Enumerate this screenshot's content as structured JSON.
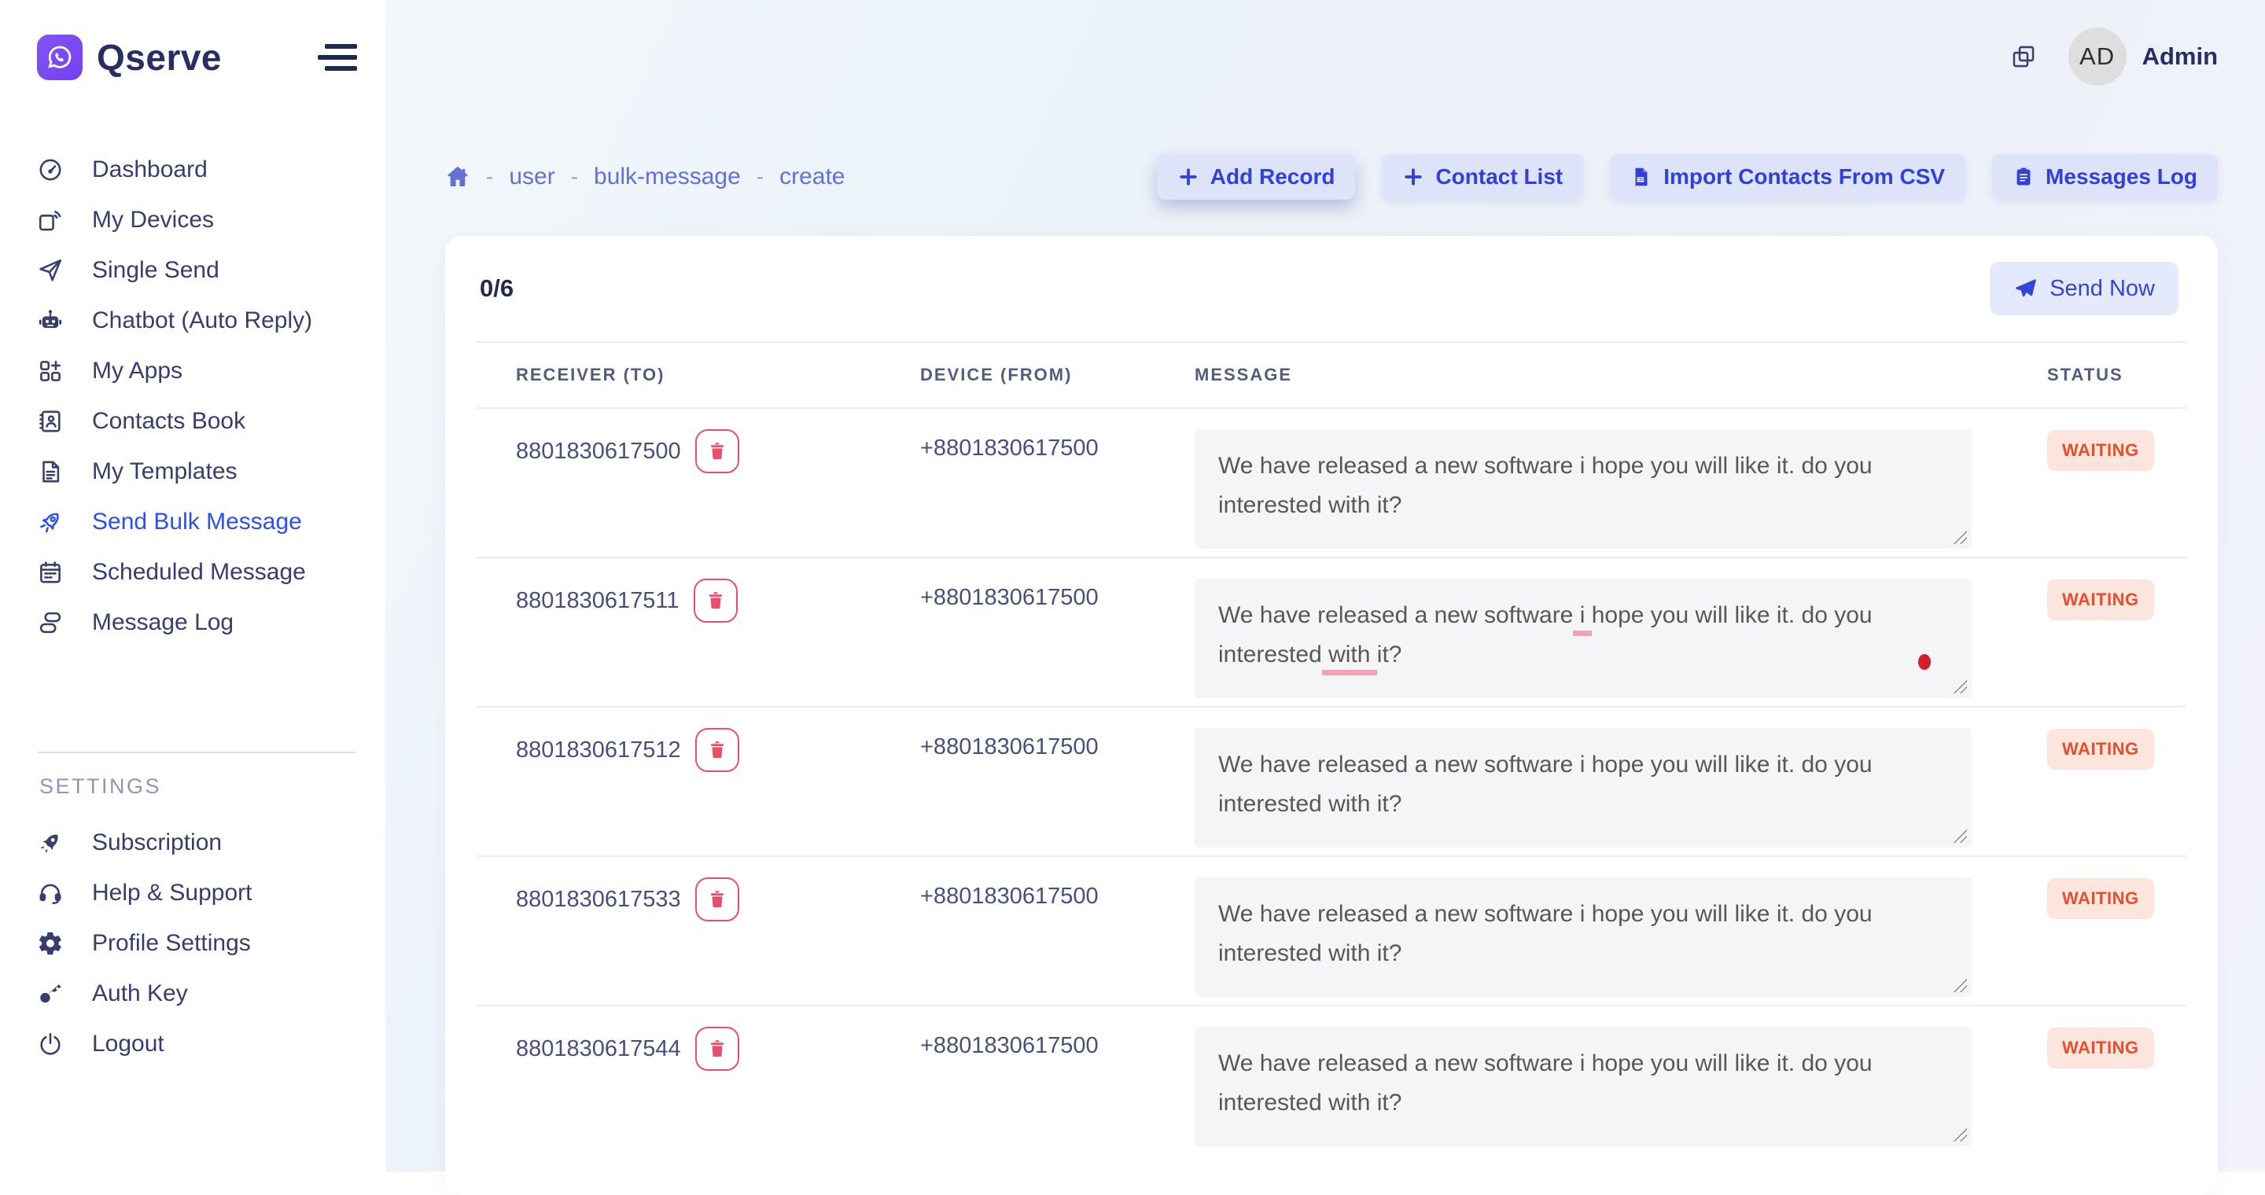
{
  "brand": {
    "name": "Qserve",
    "logo_icon": "whatsapp-icon"
  },
  "topbar": {
    "copy_icon": "copy-icon",
    "user_initials": "AD",
    "user_name": "Admin"
  },
  "sidebar": {
    "items": [
      {
        "label": "Dashboard",
        "icon": "dashboard-icon",
        "active": false
      },
      {
        "label": "My Devices",
        "icon": "devices-icon",
        "active": false
      },
      {
        "label": "Single Send",
        "icon": "paper-plane-icon",
        "active": false
      },
      {
        "label": "Chatbot (Auto Reply)",
        "icon": "robot-icon",
        "active": false
      },
      {
        "label": "My Apps",
        "icon": "apps-grid-icon",
        "active": false
      },
      {
        "label": "Contacts Book",
        "icon": "contacts-icon",
        "active": false
      },
      {
        "label": "My Templates",
        "icon": "template-icon",
        "active": false
      },
      {
        "label": "Send Bulk Message",
        "icon": "rocket-icon",
        "active": true
      },
      {
        "label": "Scheduled Message",
        "icon": "calendar-icon",
        "active": false
      },
      {
        "label": "Message Log",
        "icon": "log-icon",
        "active": false
      }
    ],
    "section_label": "SETTINGS",
    "settings_items": [
      {
        "label": "Subscription",
        "icon": "rocket-filled-icon",
        "active": false
      },
      {
        "label": "Help & Support",
        "icon": "headset-icon",
        "active": false
      },
      {
        "label": "Profile Settings",
        "icon": "gear-icon",
        "active": false
      },
      {
        "label": "Auth Key",
        "icon": "key-icon",
        "active": false
      },
      {
        "label": "Logout",
        "icon": "power-icon",
        "active": false
      }
    ]
  },
  "breadcrumb": {
    "home_icon": "home-icon",
    "separator": "-",
    "items": [
      "user",
      "bulk-message",
      "create"
    ]
  },
  "actions": [
    {
      "label": "Add Record",
      "icon": "plus-icon",
      "emphasized": true
    },
    {
      "label": "Contact List",
      "icon": "plus-icon",
      "emphasized": false
    },
    {
      "label": "Import Contacts From CSV",
      "icon": "csv-file-icon",
      "emphasized": false
    },
    {
      "label": "Messages Log",
      "icon": "clipboard-icon",
      "emphasized": false
    }
  ],
  "bulk": {
    "counter": "0/6",
    "send_button": {
      "label": "Send Now",
      "icon": "send-icon"
    },
    "table": {
      "headers": [
        "RECEIVER (TO)",
        "DEVICE (FROM)",
        "MESSAGE",
        "STATUS"
      ],
      "rows": [
        {
          "receiver": "8801830617500",
          "device": "+8801830617500",
          "message": "We have released a new software i hope you will like it. do you interested with it?",
          "status": "WAITING",
          "misspelled": [],
          "marker_dot": false
        },
        {
          "receiver": "8801830617511",
          "device": "+8801830617500",
          "message": "We have released a new software i hope you will like it. do you interested with it?",
          "status": "WAITING",
          "misspelled": [
            "i",
            "with"
          ],
          "marker_dot": true
        },
        {
          "receiver": "8801830617512",
          "device": "+8801830617500",
          "message": "We have released a new software i hope you will like it. do you interested with it?",
          "status": "WAITING",
          "misspelled": [],
          "marker_dot": false
        },
        {
          "receiver": "8801830617533",
          "device": "+8801830617500",
          "message": "We have released a new software i hope you will like it. do you interested with it?",
          "status": "WAITING",
          "misspelled": [],
          "marker_dot": false
        },
        {
          "receiver": "8801830617544",
          "device": "+8801830617500",
          "message": "We have released a new software i hope you will like it. do you interested with it?",
          "status": "WAITING",
          "misspelled": [],
          "marker_dot": false
        }
      ]
    }
  },
  "colors": {
    "brand_purple": "#7a4df3",
    "brand_navy": "#272e63",
    "accent_blue": "#3040d8",
    "active_link_blue": "#2b50f0",
    "breadcrumb_indigo": "#6471d4",
    "danger_rose": "#e8506a",
    "status_waiting_text": "#e84e2b",
    "status_waiting_bg": "#fbe5dc",
    "card_bg": "#ffffff",
    "textarea_bg": "#f5f5f7"
  }
}
